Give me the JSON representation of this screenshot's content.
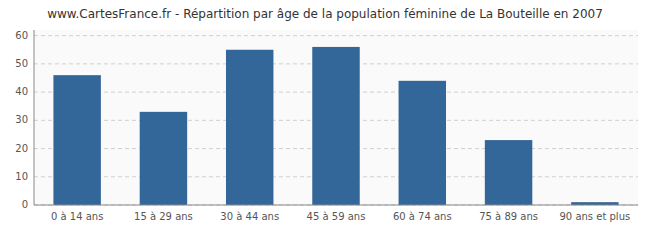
{
  "chart_data": {
    "type": "bar",
    "title": "www.CartesFrance.fr - Répartition par âge de la population féminine de La Bouteille en 2007",
    "categories": [
      "0 à 14 ans",
      "15 à 29 ans",
      "30 à 44 ans",
      "45 à 59 ans",
      "60 à 74 ans",
      "75 à 89 ans",
      "90 ans et plus"
    ],
    "values": [
      46,
      33,
      55,
      56,
      44,
      23,
      1
    ],
    "color": "#336699",
    "ylim": [
      0,
      62
    ],
    "yticks": [
      0,
      10,
      20,
      30,
      40,
      50,
      60
    ],
    "grid": true
  }
}
